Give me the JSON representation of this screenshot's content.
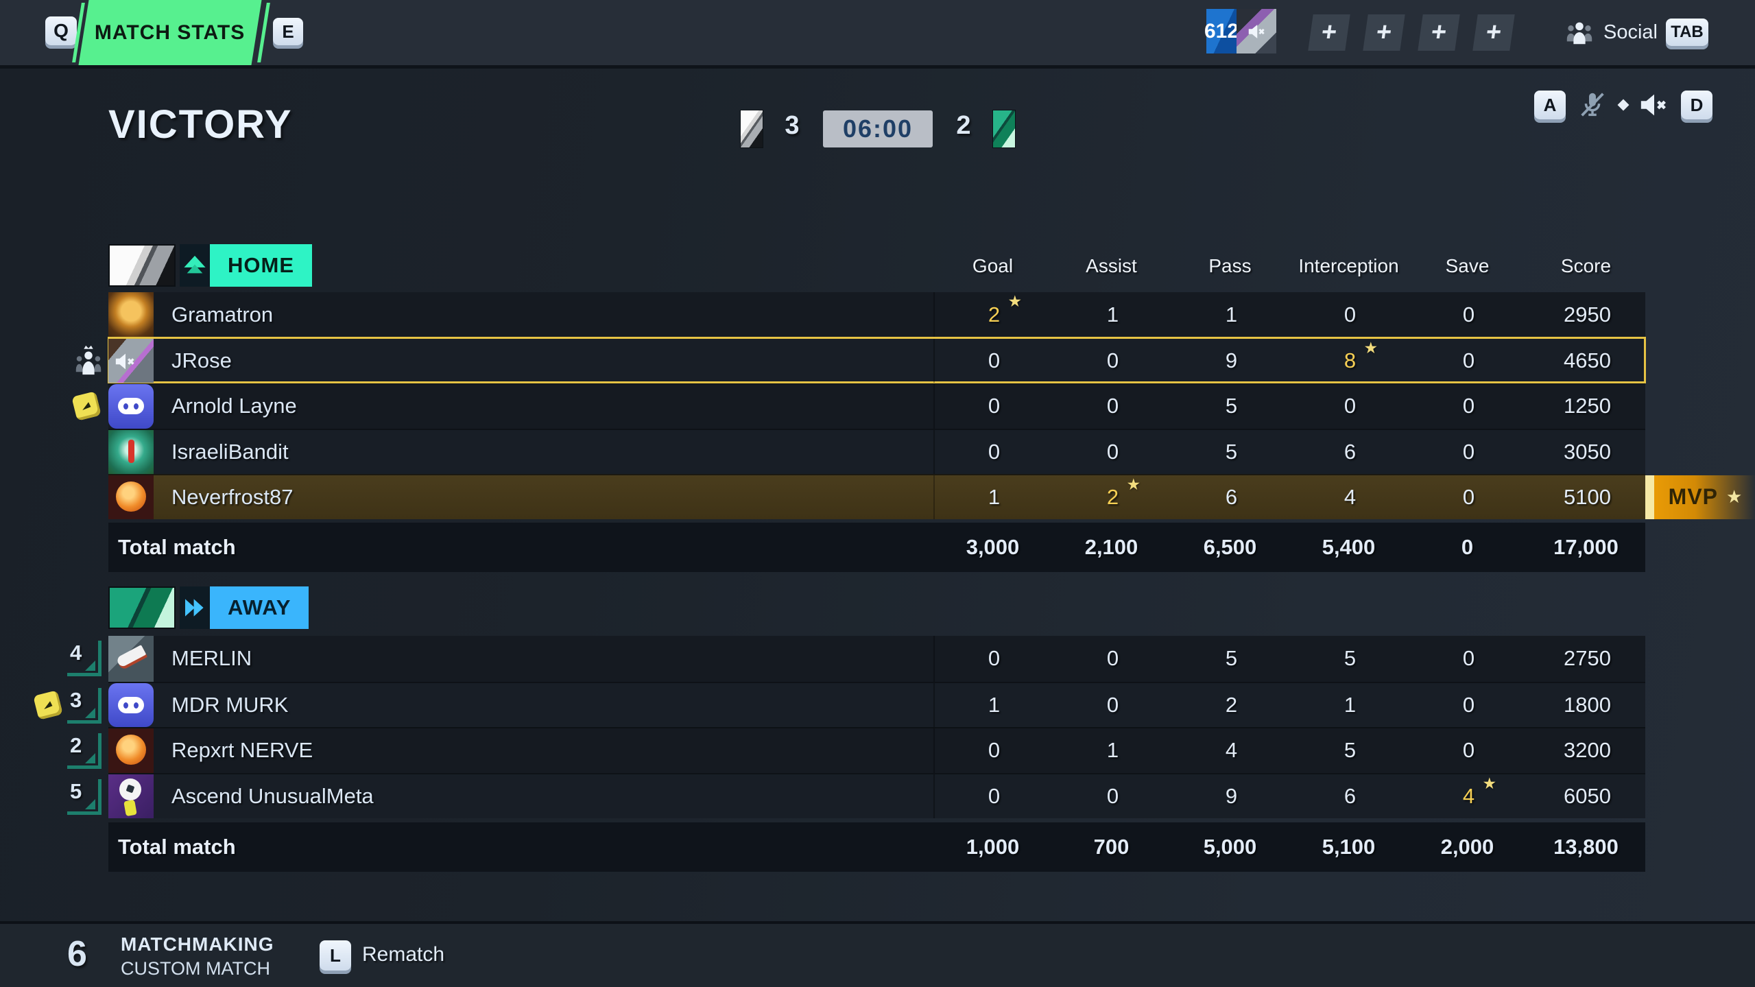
{
  "topbar": {
    "key_left": "Q",
    "tab_label": "MATCH STATS",
    "key_right": "E",
    "counter": "612",
    "plus_buttons": [
      "+",
      "+",
      "+",
      "+"
    ],
    "social_label": "Social",
    "social_key": "TAB"
  },
  "header": {
    "title": "VICTORY",
    "home_score": "3",
    "timer": "06:00",
    "away_score": "2",
    "voice_key_left": "A",
    "voice_key_right": "D"
  },
  "table": {
    "columns": [
      "Goal",
      "Assist",
      "Pass",
      "Interception",
      "Save",
      "Score"
    ],
    "total_label": "Total match",
    "mvp_label": "MVP"
  },
  "teams": [
    {
      "id": "home",
      "label": "HOME",
      "rows": [
        {
          "name": "Gramatron",
          "avatar": "trophy",
          "stats": [
            "2",
            "1",
            "1",
            "0",
            "0",
            "2950"
          ],
          "star_col": 0
        },
        {
          "name": "JRose",
          "avatar": "cat",
          "muted": true,
          "selected": true,
          "party_leader": true,
          "stats": [
            "0",
            "0",
            "9",
            "8",
            "0",
            "4650"
          ],
          "star_col": 3
        },
        {
          "name": "Arnold Layne",
          "avatar": "discord",
          "dice": true,
          "stats": [
            "0",
            "0",
            "5",
            "0",
            "0",
            "1250"
          ],
          "star_col": -1
        },
        {
          "name": "IsraeliBandit",
          "avatar": "striker",
          "stats": [
            "0",
            "0",
            "5",
            "6",
            "0",
            "3050"
          ],
          "star_col": -1
        },
        {
          "name": "Neverfrost87",
          "avatar": "fireball",
          "mvp": true,
          "stats": [
            "1",
            "2",
            "6",
            "4",
            "0",
            "5100"
          ],
          "star_col": 1
        }
      ],
      "totals": [
        "3,000",
        "2,100",
        "6,500",
        "5,400",
        "0",
        "17,000"
      ]
    },
    {
      "id": "away",
      "label": "AWAY",
      "rows": [
        {
          "name": "MERLIN",
          "avatar": "boot",
          "badge_num": "4",
          "stats": [
            "0",
            "0",
            "5",
            "5",
            "0",
            "2750"
          ],
          "star_col": -1
        },
        {
          "name": "MDR MURK",
          "avatar": "discord",
          "badge_num": "3",
          "dice": true,
          "stats": [
            "1",
            "0",
            "2",
            "1",
            "0",
            "1800"
          ],
          "star_col": -1
        },
        {
          "name": "Repxrt NERVE",
          "avatar": "fireball",
          "badge_num": "2",
          "stats": [
            "0",
            "1",
            "4",
            "5",
            "0",
            "3200"
          ],
          "star_col": -1
        },
        {
          "name": "Ascend UnusualMeta",
          "avatar": "ballglove",
          "badge_num": "5",
          "stats": [
            "0",
            "0",
            "9",
            "6",
            "4",
            "6050"
          ],
          "star_col": 4
        }
      ],
      "totals": [
        "1,000",
        "700",
        "5,000",
        "5,100",
        "2,000",
        "13,800"
      ]
    }
  ],
  "bottombar": {
    "count": "6",
    "mode_title": "MATCHMAKING",
    "mode_subtitle": "CUSTOM MATCH",
    "rematch_key": "L",
    "rematch_label": "Rematch"
  },
  "colors": {
    "tab_green": "#57f08f",
    "home_accent": "#2ef3c5",
    "away_accent": "#3ab5fc",
    "star_yellow": "#f7d054",
    "mvp_orange": "#e99b06",
    "timer_bg": "#b9bec6",
    "selected_outline": "#e6c344"
  }
}
